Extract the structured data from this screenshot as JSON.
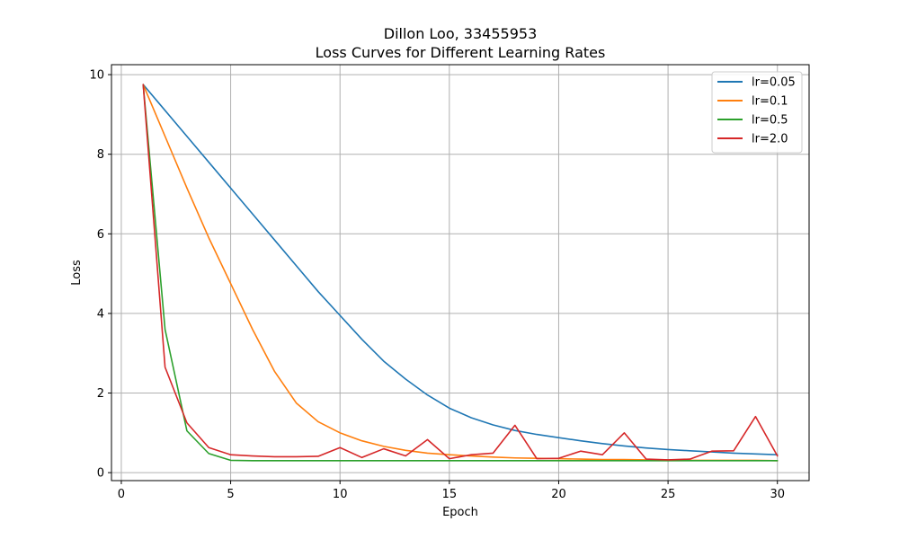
{
  "chart_data": {
    "type": "line",
    "title": [
      "Dillon Loo, 33455953",
      "Loss Curves for Different Learning Rates"
    ],
    "xlabel": "Epoch",
    "ylabel": "Loss",
    "xlim": [
      -0.45,
      31.45
    ],
    "ylim": [
      -0.2,
      10.25
    ],
    "xticks": [
      0,
      5,
      10,
      15,
      20,
      25,
      30
    ],
    "yticks": [
      0,
      2,
      4,
      6,
      8,
      10
    ],
    "grid": true,
    "legend_position": "top-right",
    "x": [
      1,
      2,
      3,
      4,
      5,
      6,
      7,
      8,
      9,
      10,
      11,
      12,
      13,
      14,
      15,
      16,
      17,
      18,
      19,
      20,
      21,
      22,
      23,
      24,
      25,
      26,
      27,
      28,
      29,
      30
    ],
    "series": [
      {
        "name": "lr=0.05",
        "color": "#1f77b4",
        "values": [
          9.75,
          9.1,
          8.45,
          7.8,
          7.15,
          6.5,
          5.85,
          5.2,
          4.55,
          3.95,
          3.35,
          2.8,
          2.35,
          1.95,
          1.62,
          1.38,
          1.2,
          1.06,
          0.96,
          0.88,
          0.8,
          0.73,
          0.67,
          0.62,
          0.58,
          0.55,
          0.52,
          0.49,
          0.47,
          0.45
        ]
      },
      {
        "name": "lr=0.1",
        "color": "#ff7f0e",
        "values": [
          9.75,
          8.45,
          7.15,
          5.9,
          4.75,
          3.6,
          2.55,
          1.75,
          1.28,
          1.0,
          0.8,
          0.66,
          0.56,
          0.49,
          0.45,
          0.42,
          0.39,
          0.37,
          0.36,
          0.35,
          0.34,
          0.33,
          0.33,
          0.32,
          0.32,
          0.31,
          0.31,
          0.31,
          0.31,
          0.3
        ]
      },
      {
        "name": "lr=0.5",
        "color": "#2ca02c",
        "values": [
          9.75,
          3.6,
          1.05,
          0.48,
          0.31,
          0.3,
          0.3,
          0.3,
          0.3,
          0.3,
          0.3,
          0.3,
          0.3,
          0.3,
          0.3,
          0.3,
          0.3,
          0.3,
          0.3,
          0.3,
          0.3,
          0.3,
          0.3,
          0.3,
          0.3,
          0.3,
          0.3,
          0.3,
          0.3,
          0.3
        ]
      },
      {
        "name": "lr=2.0",
        "color": "#d62728",
        "values": [
          9.75,
          2.65,
          1.25,
          0.63,
          0.45,
          0.42,
          0.4,
          0.4,
          0.41,
          0.63,
          0.38,
          0.6,
          0.42,
          0.83,
          0.35,
          0.45,
          0.49,
          1.19,
          0.35,
          0.36,
          0.54,
          0.45,
          1.0,
          0.34,
          0.32,
          0.34,
          0.54,
          0.55,
          1.41,
          0.42
        ]
      }
    ]
  }
}
